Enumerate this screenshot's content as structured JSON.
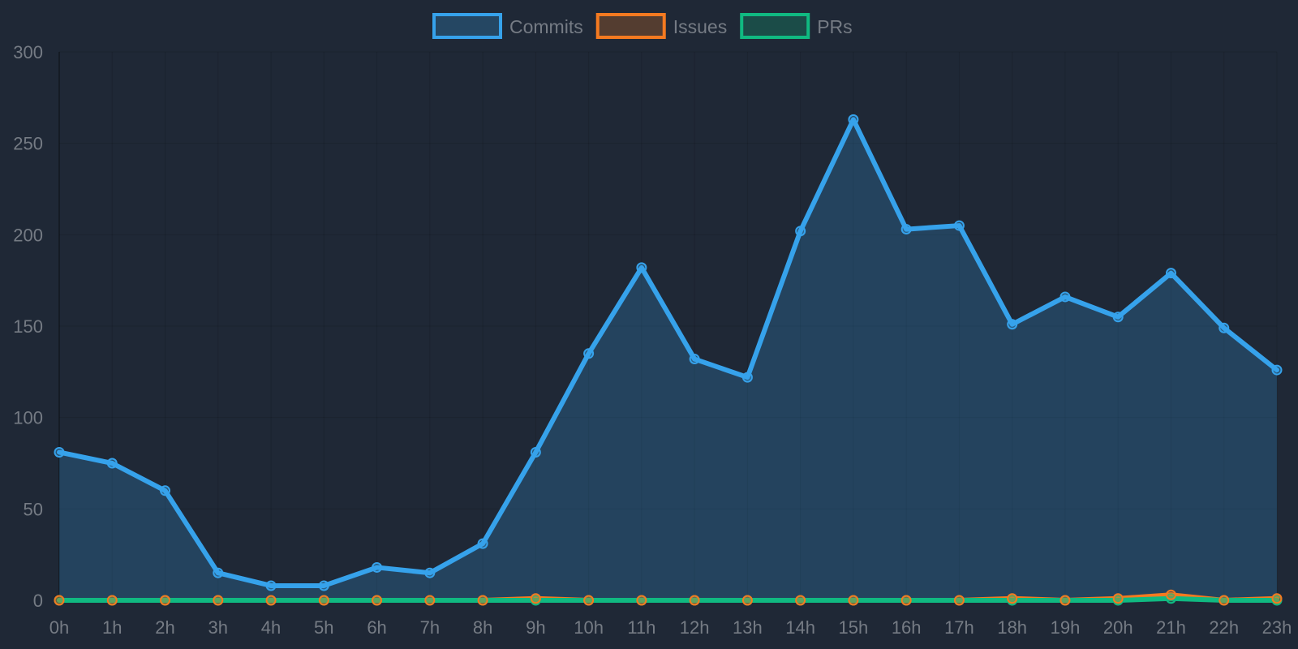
{
  "chart_data": {
    "type": "line",
    "title": "",
    "xlabel": "",
    "ylabel": "",
    "categories": [
      "0h",
      "1h",
      "2h",
      "3h",
      "4h",
      "5h",
      "6h",
      "7h",
      "8h",
      "9h",
      "10h",
      "11h",
      "12h",
      "13h",
      "14h",
      "15h",
      "16h",
      "17h",
      "18h",
      "19h",
      "20h",
      "21h",
      "22h",
      "23h"
    ],
    "ylim": [
      0,
      300
    ],
    "yticks": [
      0,
      50,
      100,
      150,
      200,
      250,
      300
    ],
    "grid": true,
    "legend_position": "top-center",
    "series": [
      {
        "name": "Commits",
        "color": "#36a2eb",
        "fill": true,
        "values": [
          81,
          75,
          60,
          15,
          8,
          8,
          18,
          15,
          31,
          81,
          135,
          182,
          132,
          122,
          202,
          263,
          203,
          205,
          151,
          166,
          155,
          179,
          149,
          126
        ]
      },
      {
        "name": "Issues",
        "color": "#f47a20",
        "fill": false,
        "values": [
          0,
          0,
          0,
          0,
          0,
          0,
          0,
          0,
          0,
          1,
          0,
          0,
          0,
          0,
          0,
          0,
          0,
          0,
          1,
          0,
          1,
          3,
          0,
          1
        ]
      },
      {
        "name": "PRs",
        "color": "#10b981",
        "fill": false,
        "values": [
          0,
          0,
          0,
          0,
          0,
          0,
          0,
          0,
          0,
          0,
          0,
          0,
          0,
          0,
          0,
          0,
          0,
          0,
          0,
          0,
          0,
          1,
          0,
          0
        ]
      }
    ]
  }
}
